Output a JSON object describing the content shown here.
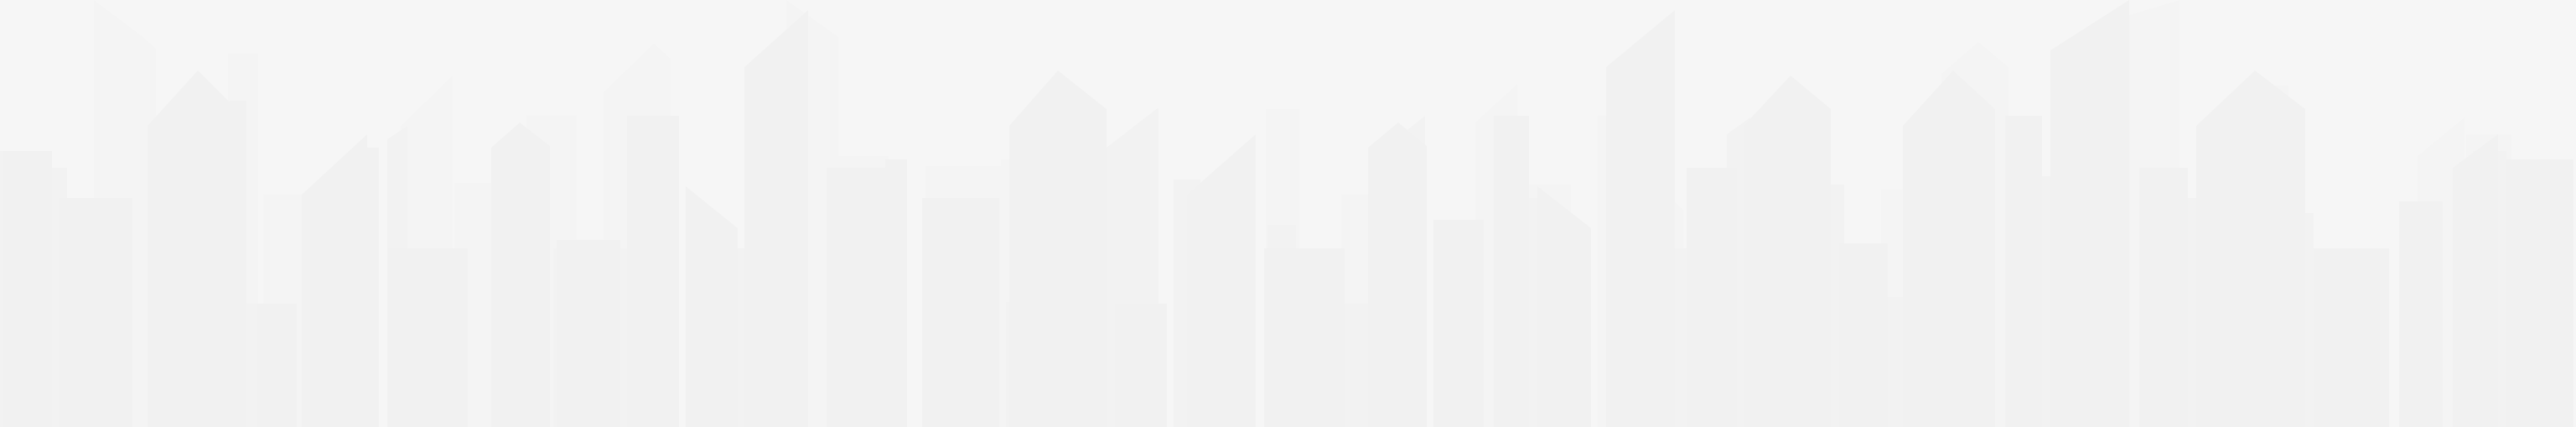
{
  "colors": {
    "background": "#ffffff",
    "far_buildings": "#fbfbfb",
    "mid_buildings": "#f7f7f7",
    "near_buildings": "#f4f4f4",
    "edge": "#ececec"
  },
  "icons": {
    "skyline": "city-skyline-icon"
  }
}
